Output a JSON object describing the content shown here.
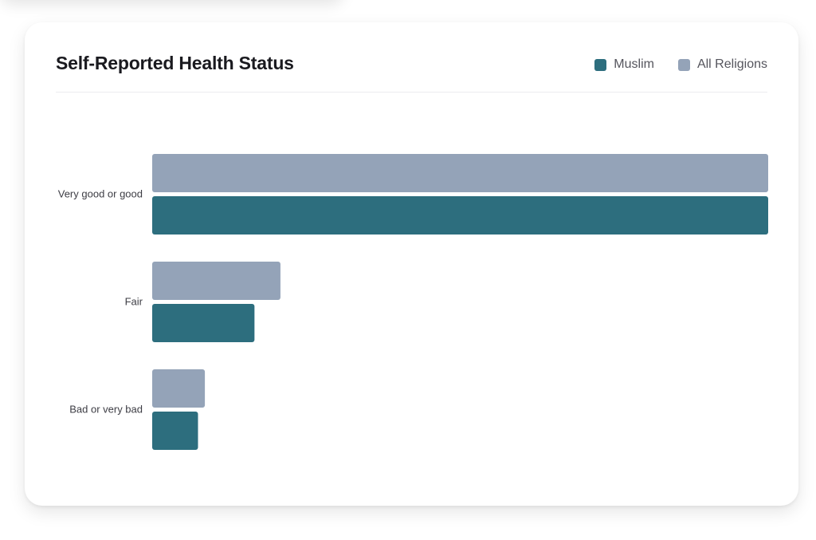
{
  "colors": {
    "muslim": "#2d6e7e",
    "all_religions": "#94a3b8"
  },
  "chart_data": {
    "type": "bar",
    "orientation": "horizontal",
    "title": "Self-Reported Health Status",
    "categories": [
      "Very good or good",
      "Fair",
      "Bad or very bad"
    ],
    "series": [
      {
        "name": "All Religions",
        "color": "#94a3b8",
        "values": [
          80.7,
          16.8,
          6.9
        ]
      },
      {
        "name": "Muslim",
        "color": "#2d6e7e",
        "values": [
          80.7,
          13.4,
          6.0
        ]
      }
    ],
    "xlim": [
      0,
      80.7
    ],
    "grid": false,
    "legend_position": "top-right"
  }
}
